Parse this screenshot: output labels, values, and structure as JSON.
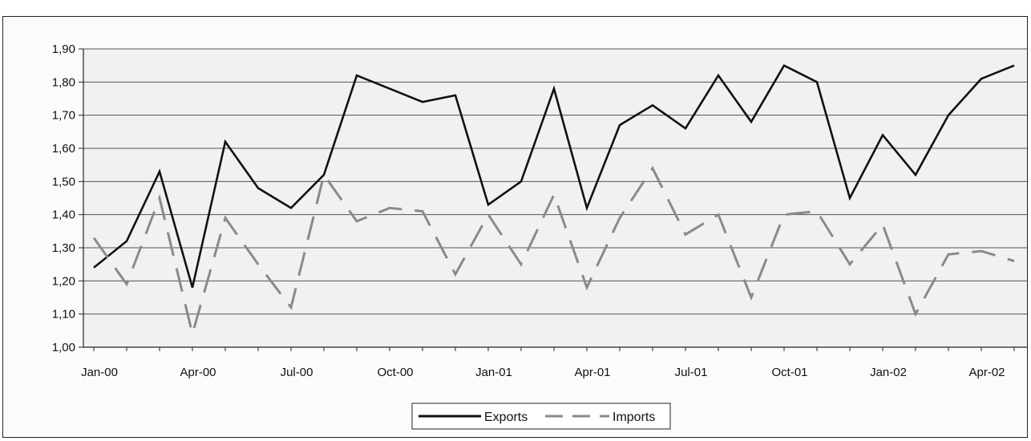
{
  "chart_data": {
    "type": "line",
    "x": [
      "Jan-00",
      "Feb-00",
      "Mar-00",
      "Apr-00",
      "May-00",
      "Jun-00",
      "Jul-00",
      "Aug-00",
      "Sep-00",
      "Oct-00",
      "Nov-00",
      "Dec-00",
      "Jan-01",
      "Feb-01",
      "Mar-01",
      "Apr-01",
      "May-01",
      "Jun-01",
      "Jul-01",
      "Aug-01",
      "Sep-01",
      "Oct-01",
      "Nov-01",
      "Dec-01",
      "Jan-02",
      "Feb-02",
      "Mar-02",
      "Apr-02",
      "May-02"
    ],
    "x_tick_labels": [
      "Jan-00",
      "Apr-00",
      "Jul-00",
      "Oct-00",
      "Jan-01",
      "Apr-01",
      "Jul-01",
      "Oct-01",
      "Jan-02",
      "Apr-02"
    ],
    "series": [
      {
        "name": "Exports",
        "style": "solid",
        "color": "#111111",
        "values": [
          1.24,
          1.32,
          1.53,
          1.18,
          1.62,
          1.48,
          1.42,
          1.52,
          1.82,
          1.78,
          1.74,
          1.76,
          1.43,
          1.5,
          1.78,
          1.42,
          1.67,
          1.73,
          1.66,
          1.82,
          1.68,
          1.85,
          1.8,
          1.45,
          1.64,
          1.52,
          1.7,
          1.81,
          1.85
        ]
      },
      {
        "name": "Imports",
        "style": "dashed",
        "color": "#8a8a8a",
        "values": [
          1.33,
          1.19,
          1.45,
          1.04,
          1.39,
          1.25,
          1.12,
          1.52,
          1.38,
          1.42,
          1.41,
          1.22,
          1.4,
          1.25,
          1.46,
          1.18,
          1.39,
          1.54,
          1.34,
          1.4,
          1.15,
          1.4,
          1.41,
          1.25,
          1.37,
          1.1,
          1.28,
          1.29,
          1.26
        ]
      }
    ],
    "y_ticks": [
      "1,00",
      "1,10",
      "1,20",
      "1,30",
      "1,40",
      "1,50",
      "1,60",
      "1,70",
      "1,80",
      "1,90"
    ],
    "ylim": [
      1.0,
      1.9
    ],
    "grid": true,
    "legend": {
      "position": "bottom-center",
      "entries": [
        "Exports",
        "Imports"
      ]
    }
  }
}
